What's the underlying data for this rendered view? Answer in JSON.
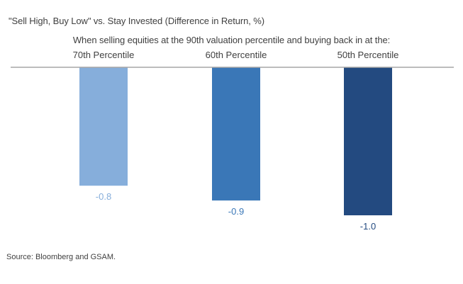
{
  "chart_data": {
    "type": "bar",
    "title": "\"Sell High, Buy Low\" vs. Stay Invested (Difference in Return, %)",
    "subtitle": "When selling equities at the 90th valuation percentile and buying back in at the:",
    "categories": [
      "70th Percentile",
      "60th Percentile",
      "50th Percentile"
    ],
    "values": [
      -0.8,
      -0.9,
      -1.0
    ],
    "data_labels": [
      "-0.8",
      "-0.9",
      "-1.0"
    ],
    "colors": [
      "#86aedb",
      "#3a77b7",
      "#234a80"
    ],
    "label_colors": [
      "#86aedb",
      "#3a77b7",
      "#234a80"
    ],
    "axis_color": "#a6a6a6",
    "ylim": [
      -1.0,
      0
    ],
    "grid": false,
    "legend": "none",
    "xlabel": "",
    "ylabel": ""
  },
  "footer": {
    "source": "Source: Bloomberg and GSAM."
  }
}
